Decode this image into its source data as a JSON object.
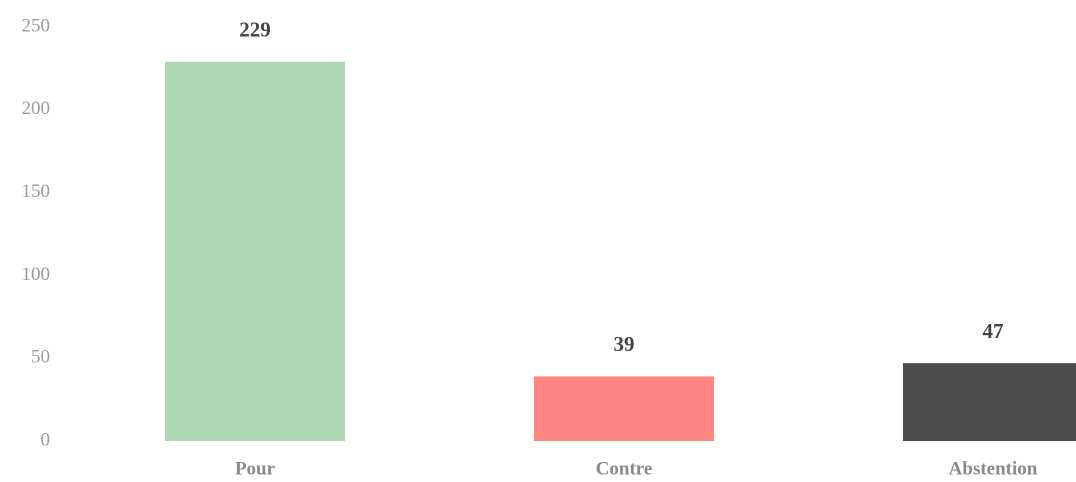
{
  "chart_data": {
    "type": "bar",
    "categories": [
      "Pour",
      "Contre",
      "Abstention"
    ],
    "values": [
      229,
      39,
      47
    ],
    "colors": [
      "#add8b3",
      "#ff8583",
      "#4d4d4f"
    ],
    "ylim": [
      0,
      250
    ],
    "yticks": [
      0,
      50,
      100,
      150,
      200,
      250
    ],
    "grid": false
  }
}
